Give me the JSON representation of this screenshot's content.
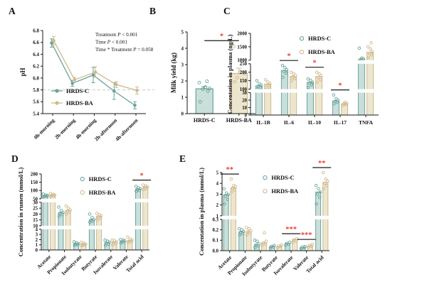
{
  "figure": {
    "colors": {
      "control_stroke": "#69A49B",
      "control_fill": "#C9DFDA",
      "treatment_stroke": "#CDB98C",
      "treatment_fill": "#EDE6CF",
      "sig_star": "#EE3B33",
      "axis": "#1a1a1a",
      "ref_line": "#c8c8c8"
    },
    "groups": [
      "HRDS-C",
      "HRDS-BA"
    ]
  },
  "panels": {
    "A": {
      "letter": "A"
    },
    "B": {
      "letter": "B"
    },
    "C": {
      "letter": "C"
    },
    "D": {
      "letter": "D"
    },
    "E": {
      "letter": "E"
    }
  },
  "chart_data": [
    {
      "panel": "A",
      "type": "line",
      "ylabel": "pH",
      "categories": [
        "0h-morning",
        "2h-morning",
        "4h-morning",
        "2h-afternoon",
        "4h-afternoon"
      ],
      "series": [
        {
          "name": "HRDS-C",
          "values": [
            6.59,
            5.91,
            6.05,
            5.78,
            5.54
          ],
          "errors": [
            0.07,
            0.05,
            0.13,
            0.14,
            0.06
          ]
        },
        {
          "name": "HRDS-BA",
          "values": [
            6.63,
            5.97,
            6.1,
            5.89,
            5.79
          ],
          "errors": [
            0.07,
            0.04,
            0.09,
            0.05,
            0.06
          ]
        }
      ],
      "ylim": [
        5.4,
        6.8
      ],
      "yticks": [
        "5.4",
        "5.6",
        "5.8",
        "6.0",
        "6.2",
        "6.4",
        "6.6",
        "6.8"
      ],
      "ref_line": 5.8,
      "annotations": [
        "Treatment P < 0.001",
        "Time P < 0.001",
        "Time * Treatment P = 0.058"
      ],
      "legend_position": "bottom-left-inside"
    },
    {
      "panel": "B",
      "type": "bar",
      "ylabel": "Milk yield (kg)",
      "categories": [
        "HRDS-C",
        "HRDS-BA"
      ],
      "bars": [
        {
          "group": "HRDS-C",
          "mean": 1.52,
          "sem_top": 1.67,
          "points": [
            0.72,
            1.38,
            1.5,
            1.55,
            1.62,
            1.9,
            1.98
          ]
        },
        {
          "group": "HRDS-BA",
          "mean": 2.45,
          "sem_top": 2.78,
          "points": [
            1.95,
            2.02,
            2.2,
            2.45,
            2.52,
            4.12
          ]
        }
      ],
      "ylim": [
        0,
        5
      ],
      "yticks": [
        "0",
        "1",
        "2",
        "3",
        "4",
        "5"
      ],
      "sig": [
        {
          "between": [
            "HRDS-C",
            "HRDS-BA"
          ],
          "label": "*"
        }
      ]
    },
    {
      "panel": "C",
      "type": "bar",
      "ylabel": "Concentation in plasma (ng/L)",
      "categories": [
        "IL-1B",
        "IL-6",
        "IL-10",
        "IL-17",
        "TNFA"
      ],
      "rotate_xlabels": false,
      "segments": [
        {
          "range": [
            0,
            30
          ],
          "ticks": [
            "0",
            "10",
            "20",
            "30"
          ],
          "frac": 0.3
        },
        {
          "range": [
            100,
            250
          ],
          "ticks": [
            "100",
            "150",
            "200",
            "250"
          ],
          "frac": 0.34
        },
        {
          "range": [
            1000,
            2000
          ],
          "ticks": [
            "1000",
            "1500",
            "2000"
          ],
          "frac": 0.36
        }
      ],
      "series": [
        {
          "name": "HRDS-C",
          "means": [
            120,
            210,
            140,
            19,
            1005
          ],
          "points": [
            [
              100,
              108,
              116,
              124,
              132,
              150
            ],
            [
              170,
              195,
              205,
              215,
              228,
              240
            ],
            [
              110,
              125,
              135,
              142,
              152,
              160
            ],
            [
              15,
              17,
              18,
              20,
              22,
              27
            ],
            [
              1000,
              1015,
              1030,
              1050,
              1080,
              1450
            ]
          ]
        },
        {
          "name": "HRDS-BA",
          "means": [
            130,
            175,
            175,
            15,
            1300
          ],
          "points": [
            [
              95,
              112,
              122,
              132,
              142,
              155
            ],
            [
              150,
              162,
              172,
              182,
              192,
              200
            ],
            [
              140,
              155,
              168,
              180,
              190,
              200
            ],
            [
              13,
              14,
              15,
              16,
              17
            ],
            [
              1100,
              1200,
              1260,
              1320,
              1420,
              1500,
              1650
            ]
          ]
        }
      ],
      "sig": [
        {
          "category": "IL-6",
          "label": "*"
        },
        {
          "category": "IL-10",
          "label": "*"
        },
        {
          "category": "IL-17",
          "label": "*"
        }
      ],
      "legend_fx": 0.4,
      "legend_fy": 0.01
    },
    {
      "panel": "D",
      "type": "bar",
      "ylabel": "Concentration in rumen (mmol/L)",
      "categories": [
        "Acetate",
        "Propionate",
        "Isobutyrate",
        "Butyrate",
        "Isovalerate",
        "Valerate",
        "Total acid"
      ],
      "rotate_xlabels": true,
      "segments": [
        {
          "range": [
            0,
            4
          ],
          "ticks": [
            "0",
            "1",
            "2",
            "3",
            "4"
          ],
          "frac": 0.3
        },
        {
          "range": [
            10,
            30
          ],
          "ticks": [
            "10",
            "15",
            "20",
            "25",
            "30"
          ],
          "frac": 0.34
        },
        {
          "range": [
            50,
            200
          ],
          "ticks": [
            "50",
            "100",
            "150",
            "200"
          ],
          "frac": 0.36
        }
      ],
      "series": [
        {
          "name": "HRDS-C",
          "means": [
            68,
            21,
            1.2,
            15,
            1.4,
            1.7,
            108
          ],
          "points": [
            [
              60,
              64,
              67,
              70,
              73,
              78
            ],
            [
              18,
              19.5,
              20.5,
              21.5,
              23,
              26
            ],
            [
              0.9,
              1.0,
              1.1,
              1.2,
              1.4,
              1.6
            ],
            [
              13,
              14,
              14.5,
              15.5,
              17,
              20
            ],
            [
              0.9,
              1.1,
              1.3,
              1.5,
              1.7,
              1.9
            ],
            [
              1.3,
              1.5,
              1.6,
              1.8,
              1.9,
              2.0
            ],
            [
              95,
              100,
              105,
              110,
              116,
              125
            ]
          ]
        },
        {
          "name": "HRDS-BA",
          "means": [
            72,
            23,
            1.1,
            18,
            1.5,
            1.8,
            120
          ],
          "points": [
            [
              63,
              68,
              71,
              74,
              77,
              82
            ],
            [
              20,
              21.5,
              22.5,
              23.5,
              25,
              27
            ],
            [
              0.8,
              0.95,
              1.05,
              1.15,
              1.3,
              1.5
            ],
            [
              15,
              16.5,
              17.5,
              18.5,
              19.5,
              20.5
            ],
            [
              1.0,
              1.2,
              1.4,
              1.6,
              1.8,
              1.9
            ],
            [
              1.4,
              1.6,
              1.7,
              1.9,
              2.1,
              2.5
            ],
            [
              105,
              112,
              118,
              122,
              128,
              133
            ]
          ]
        }
      ],
      "sig": [
        {
          "category": "Total acid",
          "label": "*"
        }
      ],
      "legend_fx": 0.38,
      "legend_fy": 0.01
    },
    {
      "panel": "E",
      "type": "bar",
      "ylabel": "Concentation in plasma (mmol/L)",
      "categories": [
        "Acetate",
        "Propionate",
        "Isobutyrate",
        "Butyrate",
        "Isovalerate",
        "Valerate",
        "Total acid"
      ],
      "rotate_xlabels": true,
      "segments": [
        {
          "range": [
            0,
            0.3
          ],
          "ticks": [
            "0.0",
            "0.1",
            "0.2",
            "0.3"
          ],
          "frac": 0.42
        },
        {
          "range": [
            1,
            5
          ],
          "ticks": [
            "1",
            "2",
            "3",
            "4",
            "5"
          ],
          "frac": 0.58
        }
      ],
      "series": [
        {
          "name": "HRDS-C",
          "means": [
            2.95,
            0.18,
            0.055,
            0.04,
            0.07,
            0.03,
            3.2
          ],
          "points": [
            [
              2.1,
              2.5,
              2.8,
              2.95,
              3.1,
              3.5
            ],
            [
              0.15,
              0.165,
              0.175,
              0.185,
              0.2,
              0.21
            ],
            [
              0.03,
              0.045,
              0.055,
              0.065,
              0.09,
              0.1
            ],
            [
              0.025,
              0.035,
              0.04,
              0.05
            ],
            [
              0.05,
              0.06,
              0.07,
              0.08
            ],
            [
              0.02,
              0.028,
              0.035,
              0.04
            ],
            [
              2.1,
              2.7,
              3.0,
              3.2,
              3.5,
              3.8
            ]
          ]
        },
        {
          "name": "HRDS-BA",
          "means": [
            3.6,
            0.18,
            0.075,
            0.04,
            0.105,
            0.045,
            4.1
          ],
          "points": [
            [
              3.2,
              3.4,
              3.55,
              3.7,
              3.8,
              4.4
            ],
            [
              0.15,
              0.17,
              0.18,
              0.19,
              0.21,
              0.22
            ],
            [
              0.05,
              0.065,
              0.075,
              0.09,
              0.17
            ],
            [
              0.03,
              0.04,
              0.045,
              0.055
            ],
            [
              0.08,
              0.095,
              0.105,
              0.115
            ],
            [
              0.035,
              0.042,
              0.05,
              0.06
            ],
            [
              3.5,
              3.8,
              4.0,
              4.2,
              4.4,
              5.0
            ]
          ]
        }
      ],
      "sig": [
        {
          "category": "Acetate",
          "label": "**"
        },
        {
          "category": "Isovalerate",
          "label": "***"
        },
        {
          "category": "Valerate",
          "label": "***"
        },
        {
          "category": "Total acid",
          "label": "**"
        }
      ],
      "legend_fx": 0.4,
      "legend_fy": 0.01
    }
  ]
}
